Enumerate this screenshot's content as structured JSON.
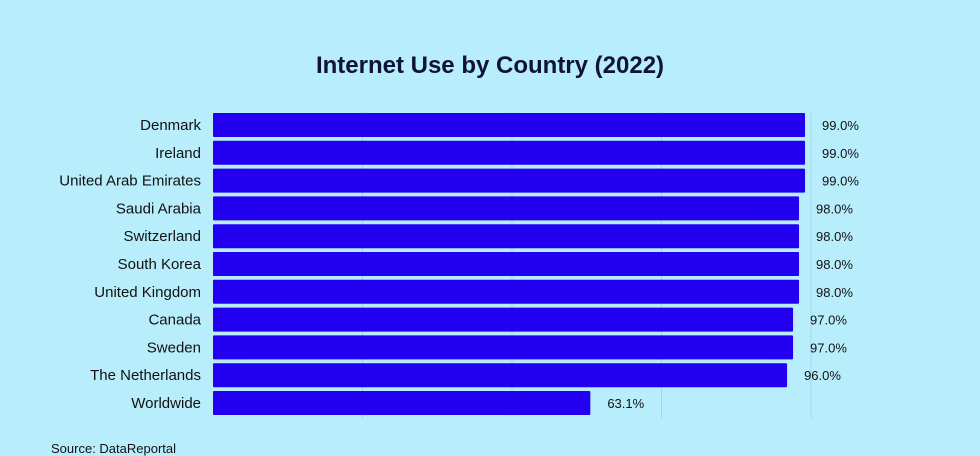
{
  "chart_data": {
    "type": "bar",
    "orientation": "horizontal",
    "title": "Internet Use by Country (2022)",
    "source": "Source: DataReportal",
    "categories": [
      "Denmark",
      "Ireland",
      "United Arab Emirates",
      "Saudi Arabia",
      "Switzerland",
      "South Korea",
      "United Kingdom",
      "Canada",
      "Sweden",
      "The Netherlands",
      "Worldwide"
    ],
    "values": [
      99.0,
      99.0,
      99.0,
      98.0,
      98.0,
      98.0,
      98.0,
      97.0,
      97.0,
      96.0,
      63.1
    ],
    "value_labels": [
      "99.0%",
      "99.0%",
      "99.0%",
      "98.0%",
      "98.0%",
      "98.0%",
      "98.0%",
      "97.0%",
      "97.0%",
      "96.0%",
      "63.1%"
    ],
    "xlim": [
      0,
      100
    ],
    "grid": true,
    "bar_color": "#2300f0",
    "grid_color": "#9fd6e6"
  }
}
